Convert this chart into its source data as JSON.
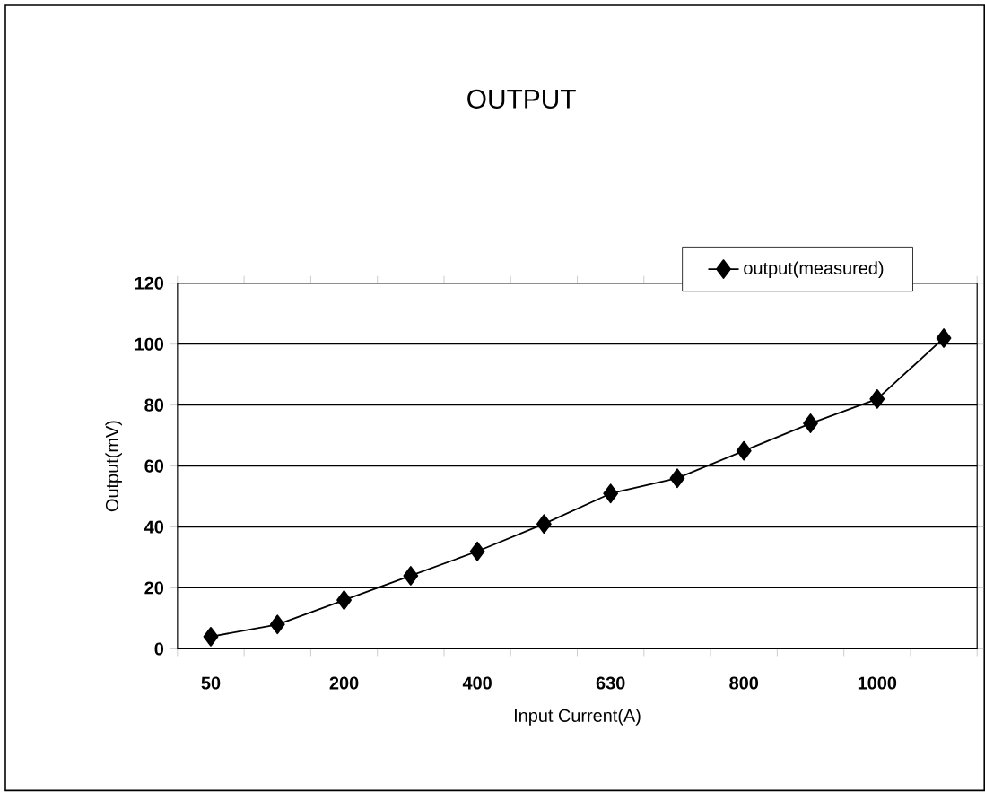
{
  "chart_data": {
    "type": "line",
    "title": "OUTPUT",
    "xlabel": "Input Current(A)",
    "ylabel": "Output(mV)",
    "categories": [
      "50",
      null,
      "200",
      null,
      "400",
      null,
      "630",
      null,
      "800",
      null,
      "1000",
      null
    ],
    "series": [
      {
        "name": "output(measured)",
        "color": "#000000",
        "values": [
          4,
          8,
          16,
          24,
          32,
          41,
          51,
          56,
          65,
          74,
          82,
          102
        ]
      }
    ],
    "ylim": [
      0,
      120
    ],
    "yticks": [
      0,
      20,
      40,
      60,
      80,
      100,
      120
    ],
    "grid": "y",
    "legend": "top right",
    "marker": "diamond",
    "line_style": "solid"
  }
}
